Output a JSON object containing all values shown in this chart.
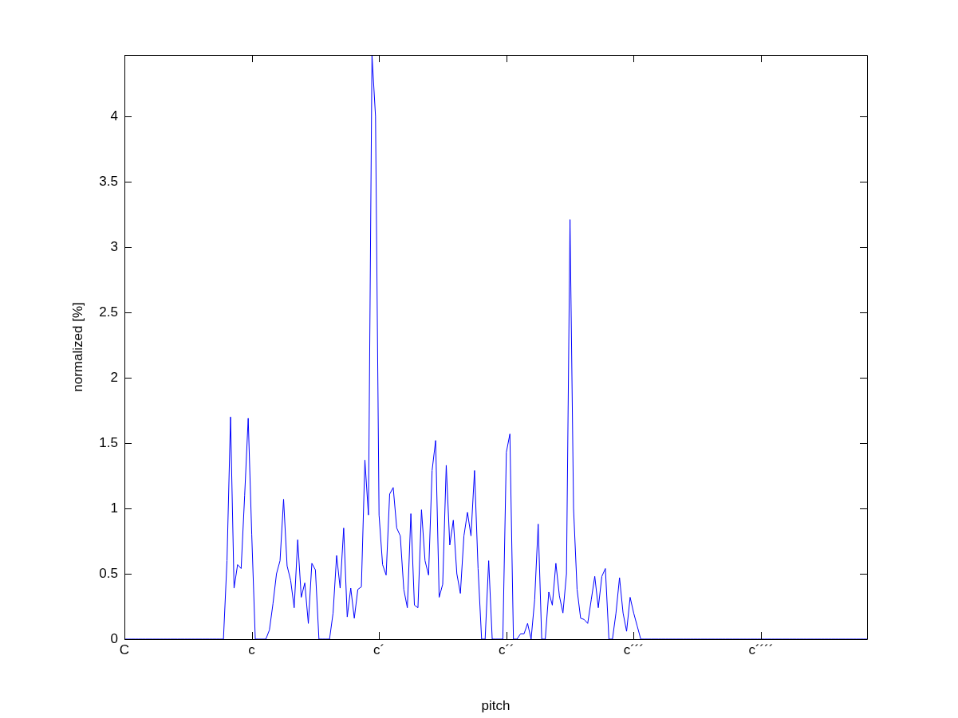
{
  "chart_data": {
    "type": "line",
    "xlabel": "pitch",
    "ylabel": "normalized [%]",
    "categories": [
      "C",
      null,
      null,
      null,
      null,
      null,
      null,
      null,
      null,
      null,
      null,
      null,
      null,
      null,
      null,
      null,
      null,
      null,
      null,
      null,
      null,
      null,
      null,
      null,
      null,
      null,
      null,
      null,
      null,
      null,
      null,
      null,
      null,
      null,
      null,
      null,
      "c",
      null,
      null,
      null,
      null,
      null,
      null,
      null,
      null,
      null,
      null,
      null,
      null,
      null,
      null,
      null,
      null,
      null,
      null,
      null,
      null,
      null,
      null,
      null,
      null,
      null,
      null,
      null,
      null,
      null,
      null,
      null,
      null,
      null,
      null,
      null,
      "c´",
      null,
      null,
      null,
      null,
      null,
      null,
      null,
      null,
      null,
      null,
      null,
      null,
      null,
      null,
      null,
      null,
      null,
      null,
      null,
      null,
      null,
      null,
      null,
      null,
      null,
      null,
      null,
      null,
      null,
      null,
      null,
      null,
      null,
      null,
      null,
      "c´´",
      null,
      null,
      null,
      null,
      null,
      null,
      null,
      null,
      null,
      null,
      null,
      null,
      null,
      null,
      null,
      null,
      null,
      null,
      null,
      null,
      null,
      null,
      null,
      null,
      null,
      null,
      null,
      null,
      null,
      null,
      null,
      null,
      null,
      null,
      null,
      "c´´´",
      null,
      null,
      null,
      null,
      null,
      null,
      null,
      null,
      null,
      null,
      null,
      null,
      null,
      null,
      null,
      null,
      null,
      null,
      null,
      null,
      null,
      null,
      null,
      null,
      null,
      null,
      null,
      null,
      null,
      null,
      null,
      null,
      null,
      null,
      null,
      "c´´´´",
      null,
      null,
      null,
      null,
      null,
      null,
      null,
      null,
      null,
      null,
      null,
      null,
      null,
      null,
      null,
      null,
      null,
      null,
      null,
      null,
      null,
      null,
      null,
      null,
      null,
      null,
      null,
      null,
      null,
      null
    ],
    "series": [
      {
        "color": "#0000ff",
        "values": [
          0,
          0,
          0,
          0,
          0,
          0,
          0,
          0,
          0,
          0,
          0,
          0,
          0,
          0,
          0,
          0,
          0,
          0,
          0,
          0,
          0,
          0,
          0,
          0,
          0,
          0,
          0,
          0,
          0,
          0.6,
          1.7,
          0.39,
          0.57,
          0.54,
          1.1,
          1.69,
          0.8,
          0,
          0,
          0,
          0,
          0.07,
          0.27,
          0.5,
          0.6,
          1.07,
          0.56,
          0.45,
          0.24,
          0.76,
          0.32,
          0.43,
          0.12,
          0.58,
          0.53,
          0,
          0,
          0,
          0,
          0.2,
          0.64,
          0.39,
          0.85,
          0.17,
          0.39,
          0.16,
          0.38,
          0.4,
          1.37,
          0.95,
          4.47,
          4.0,
          0.95,
          0.57,
          0.49,
          1.11,
          1.16,
          0.85,
          0.79,
          0.38,
          0.24,
          0.96,
          0.26,
          0.24,
          0.99,
          0.6,
          0.49,
          1.29,
          1.52,
          0.32,
          0.42,
          1.33,
          0.72,
          0.91,
          0.5,
          0.35,
          0.79,
          0.97,
          0.79,
          1.29,
          0.54,
          0,
          0,
          0.6,
          0,
          0,
          0,
          0,
          1.43,
          1.57,
          0,
          0,
          0.04,
          0.04,
          0.12,
          0,
          0.3,
          0.88,
          0,
          0,
          0.36,
          0.26,
          0.58,
          0.33,
          0.2,
          0.5,
          3.21,
          1.0,
          0.38,
          0.16,
          0.15,
          0.12,
          0.3,
          0.48,
          0.24,
          0.48,
          0.54,
          0,
          0,
          0.2,
          0.47,
          0.2,
          0.06,
          0.32,
          0.2,
          0.1,
          0,
          0,
          0,
          0,
          0,
          0,
          0,
          0,
          0,
          0,
          0,
          0,
          0,
          0,
          0,
          0,
          0,
          0,
          0,
          0,
          0,
          0,
          0,
          0,
          0,
          0,
          0,
          0,
          0,
          0,
          0,
          0,
          0,
          0,
          0,
          0,
          0,
          0,
          0,
          0,
          0,
          0,
          0,
          0,
          0,
          0,
          0,
          0,
          0,
          0,
          0,
          0,
          0,
          0,
          0,
          0,
          0,
          0,
          0,
          0,
          0,
          0,
          0,
          0,
          0
        ]
      }
    ],
    "ylim": [
      0,
      4.47
    ],
    "yticks": [
      0,
      0.5,
      1,
      1.5,
      2,
      2.5,
      3,
      3.5,
      4
    ],
    "marker": "none",
    "line_style": "solid"
  }
}
